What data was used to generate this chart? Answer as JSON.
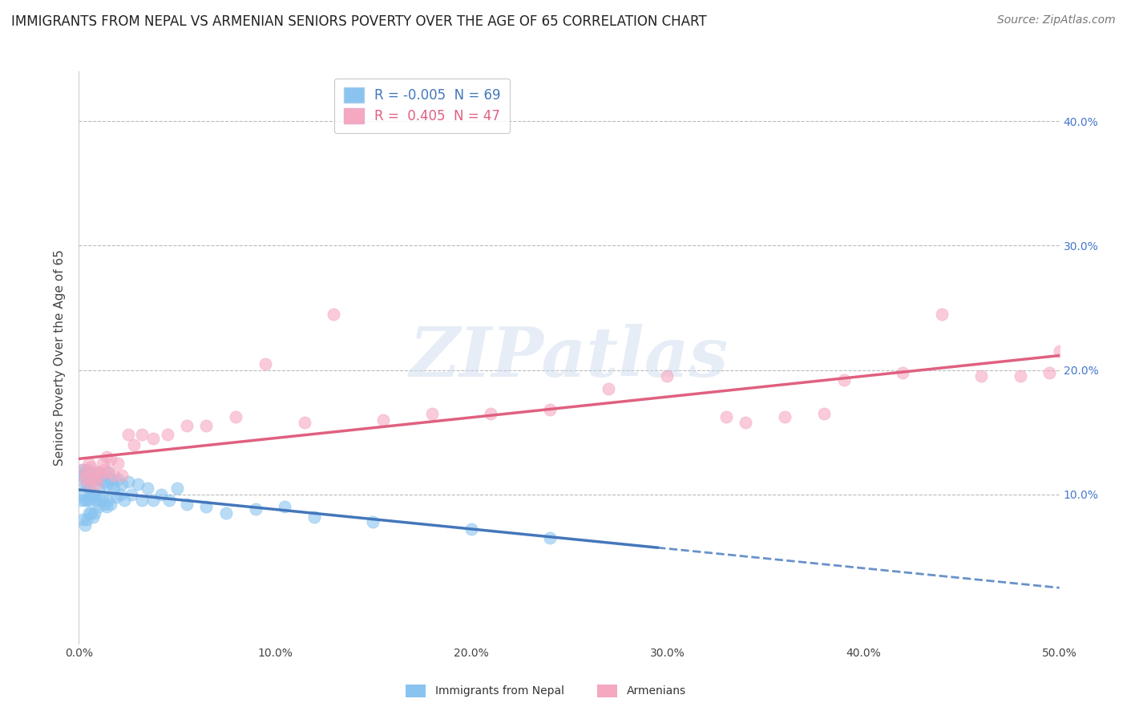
{
  "title": "IMMIGRANTS FROM NEPAL VS ARMENIAN SENIORS POVERTY OVER THE AGE OF 65 CORRELATION CHART",
  "source": "Source: ZipAtlas.com",
  "ylabel": "Seniors Poverty Over the Age of 65",
  "legend_label1": "Immigrants from Nepal",
  "legend_label2": "Armenians",
  "legend_R1": "-0.005",
  "legend_N1": "69",
  "legend_R2": "0.405",
  "legend_N2": "47",
  "xlim": [
    0.0,
    0.5
  ],
  "ylim": [
    -0.02,
    0.44
  ],
  "yticks": [
    0.1,
    0.2,
    0.3,
    0.4
  ],
  "xticks": [
    0.0,
    0.1,
    0.2,
    0.3,
    0.4,
    0.5
  ],
  "color_nepal": "#89C4F0",
  "color_armenian": "#F5A8C0",
  "color_nepal_line": "#4477BB",
  "color_armenian_line": "#E06080",
  "scatter_nepal_x": [
    0.001,
    0.001,
    0.002,
    0.002,
    0.002,
    0.003,
    0.003,
    0.003,
    0.003,
    0.004,
    0.004,
    0.004,
    0.004,
    0.005,
    0.005,
    0.005,
    0.005,
    0.005,
    0.006,
    0.006,
    0.006,
    0.007,
    0.007,
    0.007,
    0.008,
    0.008,
    0.008,
    0.009,
    0.009,
    0.01,
    0.01,
    0.01,
    0.011,
    0.011,
    0.012,
    0.012,
    0.013,
    0.013,
    0.014,
    0.014,
    0.015,
    0.015,
    0.016,
    0.016,
    0.017,
    0.018,
    0.019,
    0.02,
    0.021,
    0.022,
    0.023,
    0.025,
    0.027,
    0.03,
    0.032,
    0.035,
    0.038,
    0.042,
    0.046,
    0.05,
    0.055,
    0.065,
    0.075,
    0.09,
    0.105,
    0.12,
    0.15,
    0.2,
    0.24
  ],
  "scatter_nepal_y": [
    0.115,
    0.095,
    0.12,
    0.1,
    0.08,
    0.115,
    0.108,
    0.095,
    0.075,
    0.12,
    0.108,
    0.095,
    0.08,
    0.118,
    0.112,
    0.105,
    0.095,
    0.085,
    0.115,
    0.1,
    0.085,
    0.112,
    0.098,
    0.082,
    0.115,
    0.1,
    0.085,
    0.112,
    0.095,
    0.118,
    0.105,
    0.09,
    0.112,
    0.095,
    0.115,
    0.098,
    0.11,
    0.092,
    0.108,
    0.09,
    0.118,
    0.095,
    0.112,
    0.092,
    0.108,
    0.105,
    0.098,
    0.112,
    0.1,
    0.108,
    0.095,
    0.11,
    0.1,
    0.108,
    0.095,
    0.105,
    0.095,
    0.1,
    0.095,
    0.105,
    0.092,
    0.09,
    0.085,
    0.088,
    0.09,
    0.082,
    0.078,
    0.072,
    0.065
  ],
  "scatter_armenian_x": [
    0.002,
    0.003,
    0.004,
    0.005,
    0.005,
    0.006,
    0.007,
    0.008,
    0.009,
    0.01,
    0.011,
    0.012,
    0.013,
    0.014,
    0.015,
    0.016,
    0.018,
    0.02,
    0.022,
    0.025,
    0.028,
    0.032,
    0.038,
    0.045,
    0.055,
    0.065,
    0.08,
    0.095,
    0.115,
    0.13,
    0.155,
    0.18,
    0.21,
    0.24,
    0.27,
    0.3,
    0.33,
    0.36,
    0.39,
    0.42,
    0.44,
    0.46,
    0.48,
    0.495,
    0.5,
    0.38,
    0.34
  ],
  "scatter_armenian_y": [
    0.12,
    0.112,
    0.115,
    0.125,
    0.108,
    0.122,
    0.118,
    0.112,
    0.108,
    0.118,
    0.115,
    0.125,
    0.12,
    0.13,
    0.118,
    0.128,
    0.115,
    0.125,
    0.115,
    0.148,
    0.14,
    0.148,
    0.145,
    0.148,
    0.155,
    0.155,
    0.162,
    0.205,
    0.158,
    0.245,
    0.16,
    0.165,
    0.165,
    0.168,
    0.185,
    0.195,
    0.162,
    0.162,
    0.192,
    0.198,
    0.245,
    0.195,
    0.195,
    0.198,
    0.215,
    0.165,
    0.158
  ],
  "background_color": "#FFFFFF",
  "grid_color": "#BBBBBB",
  "watermark_text": "ZIPatlas",
  "watermark_color": "#C8D8EC",
  "watermark_alpha": 0.45,
  "title_fontsize": 12,
  "axis_label_fontsize": 11,
  "tick_fontsize": 10,
  "legend_fontsize": 12,
  "source_fontsize": 10
}
